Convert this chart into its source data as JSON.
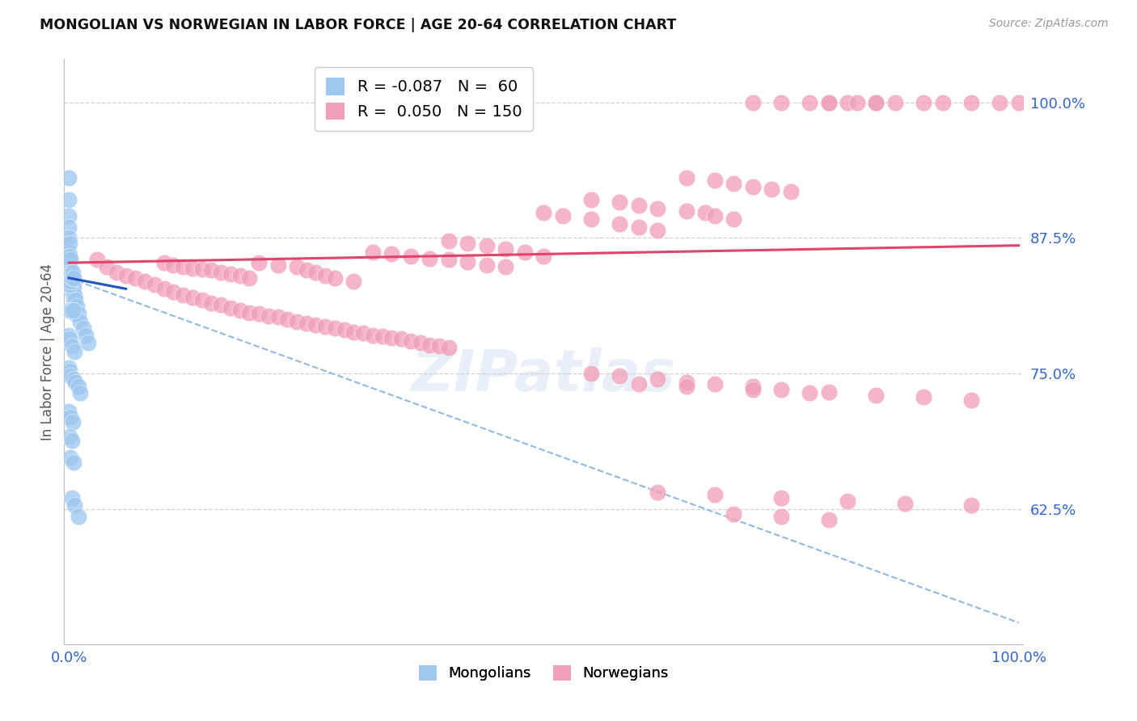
{
  "title": "MONGOLIAN VS NORWEGIAN IN LABOR FORCE | AGE 20-64 CORRELATION CHART",
  "source": "Source: ZipAtlas.com",
  "ylabel": "In Labor Force | Age 20-64",
  "right_yticks": [
    0.625,
    0.75,
    0.875,
    1.0
  ],
  "right_ytick_labels": [
    "62.5%",
    "75.0%",
    "87.5%",
    "100.0%"
  ],
  "legend_mongolian_R": "-0.087",
  "legend_mongolian_N": "60",
  "legend_norwegian_R": "0.050",
  "legend_norwegian_N": "150",
  "mongolian_color": "#9ec8f0",
  "norwegian_color": "#f0a0b8",
  "trend_mongolian_solid_color": "#2255bb",
  "trend_norwegian_color": "#e04468",
  "trend_mongolian_dashed_color": "#90b8e0",
  "background_color": "#ffffff",
  "grid_color": "#cccccc",
  "ymin": 0.5,
  "ymax": 1.04,
  "xmin": -0.005,
  "xmax": 1.005,
  "mongolian_x": [
    0.0,
    0.0,
    0.0,
    0.0,
    0.0,
    0.0,
    0.001,
    0.001,
    0.001,
    0.002,
    0.002,
    0.003,
    0.003,
    0.003,
    0.004,
    0.004,
    0.005,
    0.005,
    0.006,
    0.006,
    0.007,
    0.007,
    0.008,
    0.01,
    0.012,
    0.015,
    0.018,
    0.02,
    0.0,
    0.001,
    0.001,
    0.002,
    0.003,
    0.004,
    0.005,
    0.0,
    0.001,
    0.002,
    0.003,
    0.005,
    0.0,
    0.001,
    0.003,
    0.006,
    0.0,
    0.001,
    0.002,
    0.005,
    0.007,
    0.01,
    0.012,
    0.0,
    0.002,
    0.004,
    0.001,
    0.003,
    0.002,
    0.005,
    0.003,
    0.006,
    0.01
  ],
  "mongolian_y": [
    0.93,
    0.91,
    0.895,
    0.885,
    0.875,
    0.862,
    0.87,
    0.858,
    0.848,
    0.855,
    0.843,
    0.84,
    0.833,
    0.828,
    0.835,
    0.823,
    0.83,
    0.818,
    0.822,
    0.81,
    0.818,
    0.805,
    0.812,
    0.805,
    0.798,
    0.792,
    0.785,
    0.778,
    0.84,
    0.838,
    0.832,
    0.835,
    0.838,
    0.843,
    0.838,
    0.808,
    0.808,
    0.808,
    0.808,
    0.808,
    0.785,
    0.782,
    0.775,
    0.77,
    0.755,
    0.752,
    0.748,
    0.745,
    0.742,
    0.738,
    0.732,
    0.715,
    0.71,
    0.705,
    0.692,
    0.688,
    0.672,
    0.668,
    0.635,
    0.628,
    0.618
  ],
  "norwegian_x": [
    0.03,
    0.04,
    0.05,
    0.06,
    0.07,
    0.08,
    0.09,
    0.1,
    0.11,
    0.12,
    0.13,
    0.14,
    0.15,
    0.16,
    0.17,
    0.18,
    0.19,
    0.2,
    0.21,
    0.22,
    0.23,
    0.24,
    0.25,
    0.26,
    0.27,
    0.28,
    0.29,
    0.3,
    0.31,
    0.32,
    0.33,
    0.34,
    0.35,
    0.36,
    0.37,
    0.38,
    0.39,
    0.4,
    0.1,
    0.11,
    0.12,
    0.13,
    0.14,
    0.15,
    0.16,
    0.17,
    0.18,
    0.19,
    0.2,
    0.22,
    0.24,
    0.25,
    0.26,
    0.27,
    0.28,
    0.3,
    0.32,
    0.34,
    0.36,
    0.38,
    0.4,
    0.42,
    0.44,
    0.46,
    0.4,
    0.42,
    0.44,
    0.46,
    0.48,
    0.5,
    0.5,
    0.52,
    0.55,
    0.58,
    0.6,
    0.62,
    0.55,
    0.58,
    0.6,
    0.62,
    0.65,
    0.67,
    0.68,
    0.7,
    0.65,
    0.68,
    0.7,
    0.72,
    0.74,
    0.76,
    0.72,
    0.75,
    0.78,
    0.8,
    0.82,
    0.85,
    0.8,
    0.83,
    0.85,
    0.87,
    0.9,
    0.92,
    0.95,
    0.98,
    1.0,
    0.55,
    0.58,
    0.62,
    0.65,
    0.68,
    0.72,
    0.75,
    0.78,
    0.6,
    0.65,
    0.72,
    0.8,
    0.85,
    0.9,
    0.95,
    0.62,
    0.68,
    0.75,
    0.82,
    0.88,
    0.95,
    0.7,
    0.75,
    0.8
  ],
  "norwegian_y": [
    0.855,
    0.848,
    0.843,
    0.84,
    0.838,
    0.835,
    0.832,
    0.828,
    0.825,
    0.822,
    0.82,
    0.818,
    0.815,
    0.813,
    0.81,
    0.808,
    0.806,
    0.805,
    0.803,
    0.802,
    0.8,
    0.798,
    0.796,
    0.795,
    0.793,
    0.792,
    0.79,
    0.788,
    0.787,
    0.785,
    0.784,
    0.783,
    0.782,
    0.78,
    0.778,
    0.776,
    0.775,
    0.774,
    0.852,
    0.85,
    0.848,
    0.847,
    0.846,
    0.845,
    0.843,
    0.842,
    0.84,
    0.838,
    0.852,
    0.85,
    0.848,
    0.845,
    0.843,
    0.84,
    0.838,
    0.835,
    0.862,
    0.86,
    0.858,
    0.856,
    0.855,
    0.853,
    0.85,
    0.848,
    0.872,
    0.87,
    0.868,
    0.865,
    0.862,
    0.858,
    0.898,
    0.895,
    0.892,
    0.888,
    0.885,
    0.882,
    0.91,
    0.908,
    0.905,
    0.902,
    0.9,
    0.898,
    0.895,
    0.892,
    0.93,
    0.928,
    0.925,
    0.922,
    0.92,
    0.918,
    1.0,
    1.0,
    1.0,
    1.0,
    1.0,
    1.0,
    1.0,
    1.0,
    1.0,
    1.0,
    1.0,
    1.0,
    1.0,
    1.0,
    1.0,
    0.75,
    0.748,
    0.745,
    0.742,
    0.74,
    0.738,
    0.735,
    0.732,
    0.74,
    0.738,
    0.735,
    0.733,
    0.73,
    0.728,
    0.725,
    0.64,
    0.638,
    0.635,
    0.632,
    0.63,
    0.628,
    0.62,
    0.618,
    0.615
  ],
  "trend_nor_x0": 0.0,
  "trend_nor_y0": 0.852,
  "trend_nor_x1": 1.0,
  "trend_nor_y1": 0.868,
  "trend_mon_solid_x0": 0.0,
  "trend_mon_solid_y0": 0.838,
  "trend_mon_solid_x1": 0.06,
  "trend_mon_solid_y1": 0.828,
  "trend_mon_dash_x0": 0.0,
  "trend_mon_dash_y0": 0.838,
  "trend_mon_dash_x1": 1.0,
  "trend_mon_dash_y1": 0.52
}
